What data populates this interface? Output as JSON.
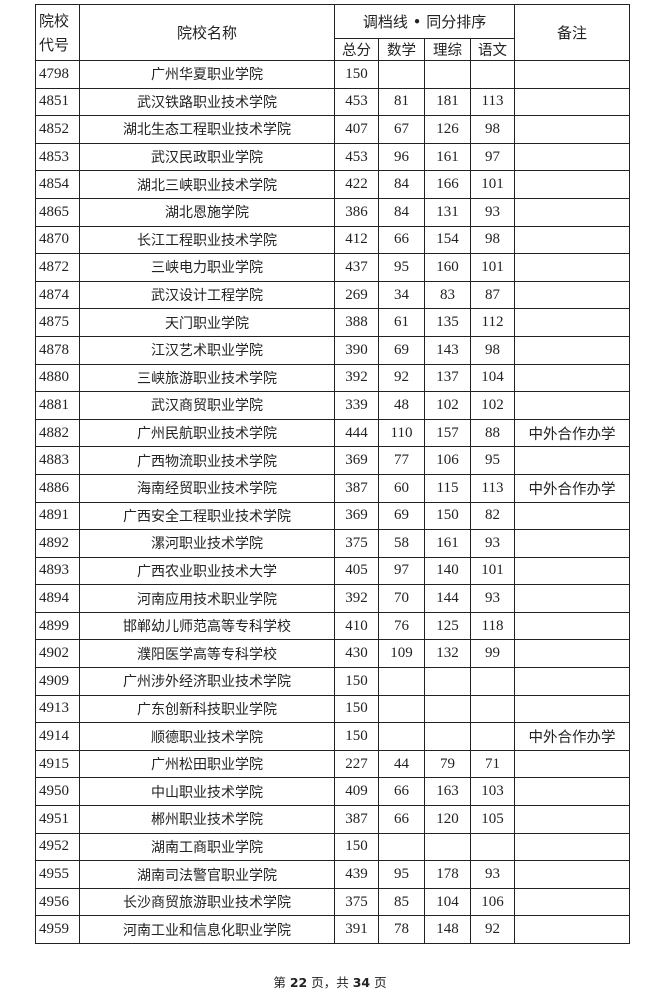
{
  "header": {
    "code": "院校代号",
    "name": "院校名称",
    "group": "调档线 • 同分排序",
    "remark": "备注",
    "sub": [
      "总分",
      "数学",
      "理综",
      "语文"
    ]
  },
  "rows": [
    {
      "code": "4798",
      "name": "广州华夏职业学院",
      "total": "150",
      "math": "",
      "lizong": "",
      "chinese": "",
      "remark": ""
    },
    {
      "code": "4851",
      "name": "武汉铁路职业技术学院",
      "total": "453",
      "math": "81",
      "lizong": "181",
      "chinese": "113",
      "remark": ""
    },
    {
      "code": "4852",
      "name": "湖北生态工程职业技术学院",
      "total": "407",
      "math": "67",
      "lizong": "126",
      "chinese": "98",
      "remark": ""
    },
    {
      "code": "4853",
      "name": "武汉民政职业学院",
      "total": "453",
      "math": "96",
      "lizong": "161",
      "chinese": "97",
      "remark": ""
    },
    {
      "code": "4854",
      "name": "湖北三峡职业技术学院",
      "total": "422",
      "math": "84",
      "lizong": "166",
      "chinese": "101",
      "remark": ""
    },
    {
      "code": "4865",
      "name": "湖北恩施学院",
      "total": "386",
      "math": "84",
      "lizong": "131",
      "chinese": "93",
      "remark": ""
    },
    {
      "code": "4870",
      "name": "长江工程职业技术学院",
      "total": "412",
      "math": "66",
      "lizong": "154",
      "chinese": "98",
      "remark": ""
    },
    {
      "code": "4872",
      "name": "三峡电力职业学院",
      "total": "437",
      "math": "95",
      "lizong": "160",
      "chinese": "101",
      "remark": ""
    },
    {
      "code": "4874",
      "name": "武汉设计工程学院",
      "total": "269",
      "math": "34",
      "lizong": "83",
      "chinese": "87",
      "remark": ""
    },
    {
      "code": "4875",
      "name": "天门职业学院",
      "total": "388",
      "math": "61",
      "lizong": "135",
      "chinese": "112",
      "remark": ""
    },
    {
      "code": "4878",
      "name": "江汉艺术职业学院",
      "total": "390",
      "math": "69",
      "lizong": "143",
      "chinese": "98",
      "remark": ""
    },
    {
      "code": "4880",
      "name": "三峡旅游职业技术学院",
      "total": "392",
      "math": "92",
      "lizong": "137",
      "chinese": "104",
      "remark": ""
    },
    {
      "code": "4881",
      "name": "武汉商贸职业学院",
      "total": "339",
      "math": "48",
      "lizong": "102",
      "chinese": "102",
      "remark": ""
    },
    {
      "code": "4882",
      "name": "广州民航职业技术学院",
      "total": "444",
      "math": "110",
      "lizong": "157",
      "chinese": "88",
      "remark": "中外合作办学"
    },
    {
      "code": "4883",
      "name": "广西物流职业技术学院",
      "total": "369",
      "math": "77",
      "lizong": "106",
      "chinese": "95",
      "remark": ""
    },
    {
      "code": "4886",
      "name": "海南经贸职业技术学院",
      "total": "387",
      "math": "60",
      "lizong": "115",
      "chinese": "113",
      "remark": "中外合作办学"
    },
    {
      "code": "4891",
      "name": "广西安全工程职业技术学院",
      "total": "369",
      "math": "69",
      "lizong": "150",
      "chinese": "82",
      "remark": ""
    },
    {
      "code": "4892",
      "name": "漯河职业技术学院",
      "total": "375",
      "math": "58",
      "lizong": "161",
      "chinese": "93",
      "remark": ""
    },
    {
      "code": "4893",
      "name": "广西农业职业技术大学",
      "total": "405",
      "math": "97",
      "lizong": "140",
      "chinese": "101",
      "remark": ""
    },
    {
      "code": "4894",
      "name": "河南应用技术职业学院",
      "total": "392",
      "math": "70",
      "lizong": "144",
      "chinese": "93",
      "remark": ""
    },
    {
      "code": "4899",
      "name": "邯郸幼儿师范高等专科学校",
      "total": "410",
      "math": "76",
      "lizong": "125",
      "chinese": "118",
      "remark": ""
    },
    {
      "code": "4902",
      "name": "濮阳医学高等专科学校",
      "total": "430",
      "math": "109",
      "lizong": "132",
      "chinese": "99",
      "remark": ""
    },
    {
      "code": "4909",
      "name": "广州涉外经济职业技术学院",
      "total": "150",
      "math": "",
      "lizong": "",
      "chinese": "",
      "remark": ""
    },
    {
      "code": "4913",
      "name": "广东创新科技职业学院",
      "total": "150",
      "math": "",
      "lizong": "",
      "chinese": "",
      "remark": ""
    },
    {
      "code": "4914",
      "name": "顺德职业技术学院",
      "total": "150",
      "math": "",
      "lizong": "",
      "chinese": "",
      "remark": "中外合作办学"
    },
    {
      "code": "4915",
      "name": "广州松田职业学院",
      "total": "227",
      "math": "44",
      "lizong": "79",
      "chinese": "71",
      "remark": ""
    },
    {
      "code": "4950",
      "name": "中山职业技术学院",
      "total": "409",
      "math": "66",
      "lizong": "163",
      "chinese": "103",
      "remark": ""
    },
    {
      "code": "4951",
      "name": "郴州职业技术学院",
      "total": "387",
      "math": "66",
      "lizong": "120",
      "chinese": "105",
      "remark": ""
    },
    {
      "code": "4952",
      "name": "湖南工商职业学院",
      "total": "150",
      "math": "",
      "lizong": "",
      "chinese": "",
      "remark": ""
    },
    {
      "code": "4955",
      "name": "湖南司法警官职业学院",
      "total": "439",
      "math": "95",
      "lizong": "178",
      "chinese": "93",
      "remark": ""
    },
    {
      "code": "4956",
      "name": "长沙商贸旅游职业技术学院",
      "total": "375",
      "math": "85",
      "lizong": "104",
      "chinese": "106",
      "remark": ""
    },
    {
      "code": "4959",
      "name": "河南工业和信息化职业学院",
      "total": "391",
      "math": "78",
      "lizong": "148",
      "chinese": "92",
      "remark": ""
    }
  ],
  "footer": {
    "prefix": "第 ",
    "page": "22",
    "middle": " 页，共 ",
    "total": "34",
    "suffix": " 页"
  }
}
